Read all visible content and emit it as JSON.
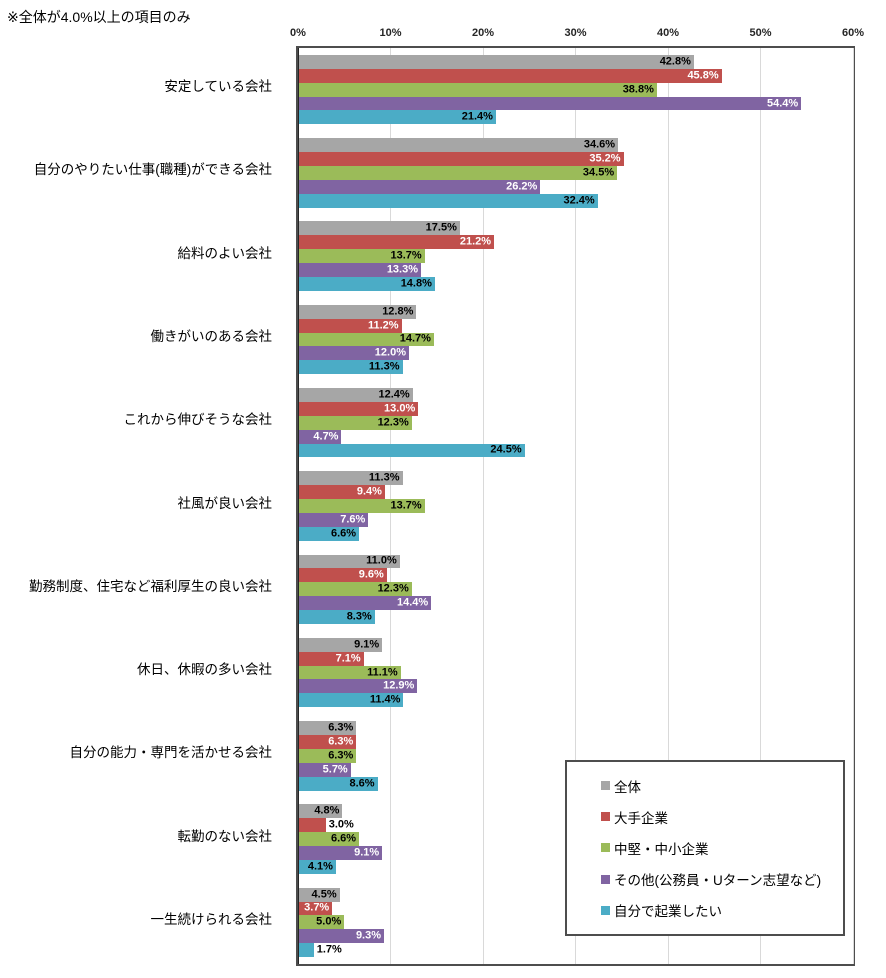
{
  "title": "※全体が4.0%以上の項目のみ",
  "chart_data": {
    "type": "bar",
    "orientation": "horizontal",
    "title": "※全体が4.0%以上の項目のみ",
    "categories": [
      "安定している会社",
      "自分のやりたい仕事(職種)ができる会社",
      "給料のよい会社",
      "働きがいのある会社",
      "これから伸びそうな会社",
      "社風が良い会社",
      "勤務制度、住宅など福利厚生の良い会社",
      "休日、休暇の多い会社",
      "自分の能力・専門を活かせる会社",
      "転勤のない会社",
      "一生続けられる会社"
    ],
    "series": [
      {
        "name": "全体",
        "color": "#A6A6A6",
        "label_color": "#000000",
        "values": [
          42.8,
          34.6,
          17.5,
          12.8,
          12.4,
          11.3,
          11.0,
          9.1,
          6.3,
          4.8,
          4.5
        ]
      },
      {
        "name": "大手企業",
        "color": "#C0504D",
        "label_color": "#FFFFFF",
        "values": [
          45.8,
          35.2,
          21.2,
          11.2,
          13.0,
          9.4,
          9.6,
          7.1,
          6.3,
          3.0,
          3.7
        ]
      },
      {
        "name": "中堅・中小企業",
        "color": "#9BBB59",
        "label_color": "#000000",
        "values": [
          38.8,
          34.5,
          13.7,
          14.7,
          12.3,
          13.7,
          12.3,
          11.1,
          6.3,
          6.6,
          5.0
        ]
      },
      {
        "name": "その他(公務員・Uターン志望など)",
        "color": "#8064A2",
        "label_color": "#FFFFFF",
        "values": [
          54.4,
          26.2,
          13.3,
          12.0,
          4.7,
          7.6,
          14.4,
          12.9,
          5.7,
          9.1,
          9.3
        ]
      },
      {
        "name": "自分で起業したい",
        "color": "#4BACC6",
        "label_color": "#000000",
        "values": [
          21.4,
          32.4,
          14.8,
          11.3,
          24.5,
          6.6,
          8.3,
          11.4,
          8.6,
          4.1,
          1.7
        ]
      }
    ],
    "x_axis": {
      "min": 0,
      "max": 60,
      "tick_step": 10,
      "tick_labels": [
        "0%",
        "10%",
        "20%",
        "30%",
        "40%",
        "50%",
        "60%"
      ]
    },
    "grid": true,
    "legend_position": "overlay-bottom-right",
    "value_label_format": "0.0%",
    "colors": {
      "gridline": "#d9d9d9",
      "plot_border": "#4d4d4d",
      "outside_label": "#000000"
    }
  }
}
